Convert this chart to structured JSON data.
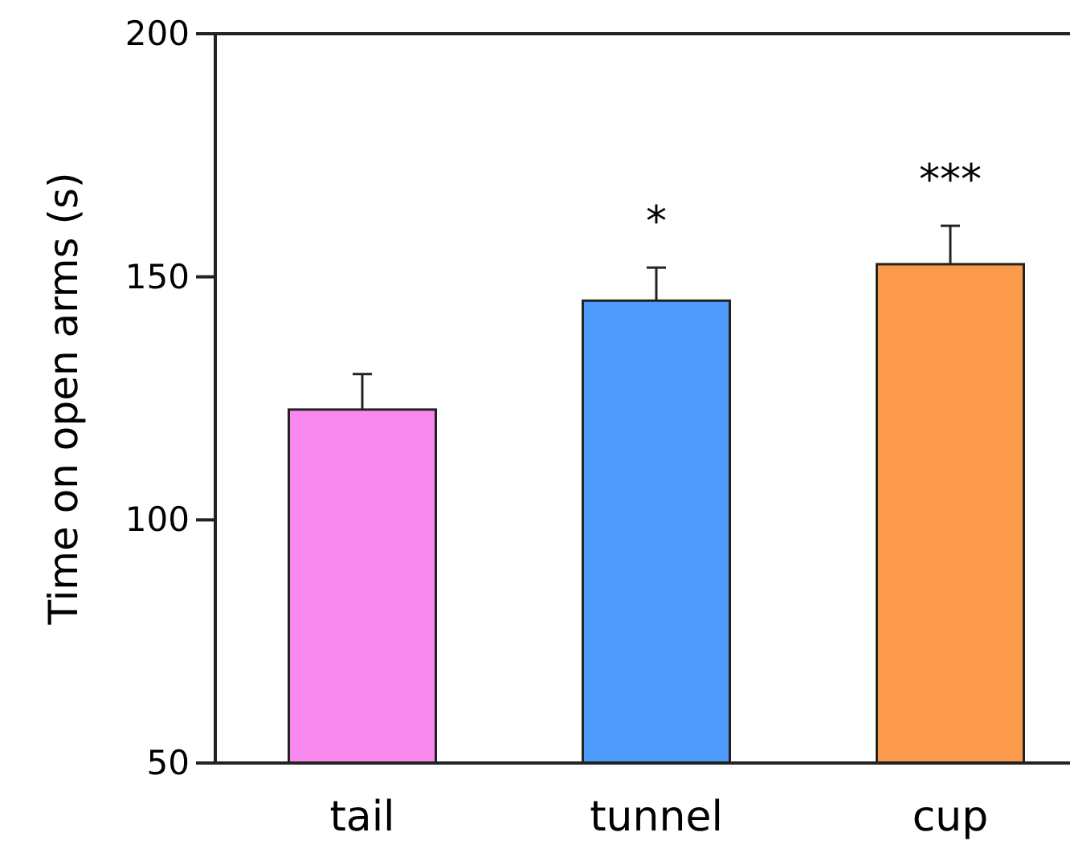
{
  "chart_data": {
    "type": "bar",
    "ylabel": "Time on open arms (s)",
    "categories": [
      "tail",
      "tunnel",
      "cup"
    ],
    "values": [
      122.7,
      145.1,
      152.6
    ],
    "errors": [
      [
        122.7,
        130
      ],
      [
        145.1,
        151.9
      ],
      [
        152.6,
        160.5
      ]
    ],
    "colors": [
      "#f988ef",
      "#4f9bfb",
      "#fb9a4a"
    ],
    "ylim": [
      50,
      200
    ],
    "yticks": [
      50,
      100,
      150,
      200
    ],
    "grid": false,
    "annotations": [
      "*",
      "***"
    ]
  }
}
